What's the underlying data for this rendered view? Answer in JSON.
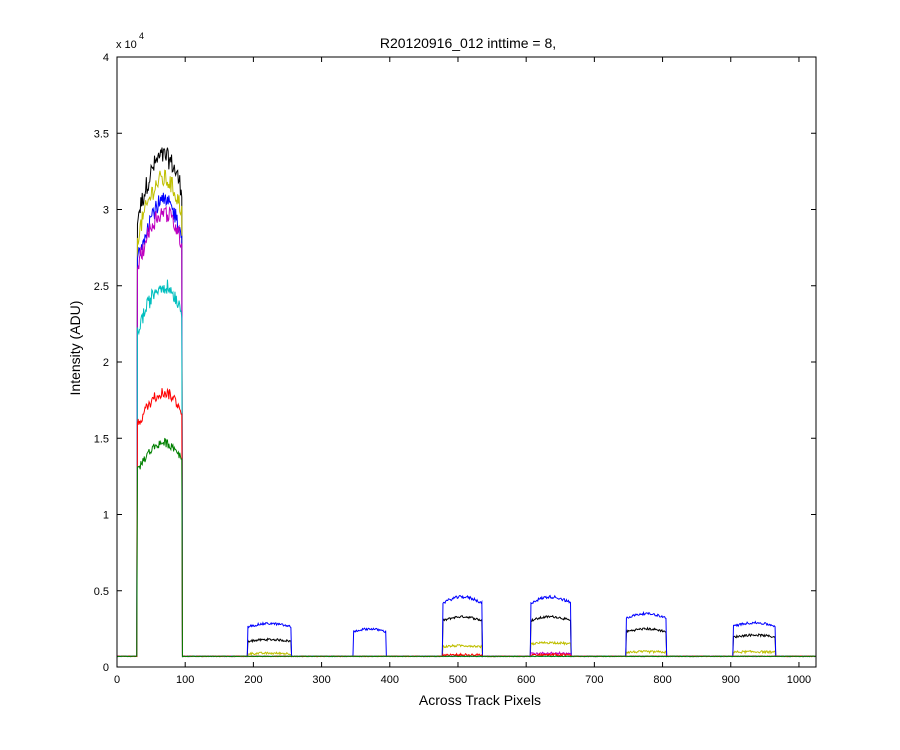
{
  "chart_data": {
    "type": "line",
    "title": "R20120916_012 inttime = 8,",
    "xlabel": "Across Track Pixels",
    "ylabel": "Intensity (ADU)",
    "y_exponent_label": "x 10",
    "y_exponent_power": "4",
    "xlim": [
      0,
      1025
    ],
    "ylim": [
      0,
      40000
    ],
    "xticks": [
      0,
      100,
      200,
      300,
      400,
      500,
      600,
      700,
      800,
      900,
      1000
    ],
    "yticks": [
      0,
      5000,
      10000,
      15000,
      20000,
      25000,
      30000,
      35000,
      40000
    ],
    "xtick_labels": [
      "0",
      "100",
      "200",
      "300",
      "400",
      "500",
      "600",
      "700",
      "800",
      "900",
      "1000"
    ],
    "ytick_labels": [
      "0",
      "0.5",
      "1",
      "1.5",
      "2",
      "2.5",
      "3",
      "3.5",
      "4"
    ],
    "grid": false,
    "legend": "none",
    "baseline": 700,
    "peaks": [
      {
        "x": [
          30,
          95
        ],
        "shape": "rising"
      },
      {
        "x": [
          192,
          255
        ],
        "shape": "flat"
      },
      {
        "x": [
          347,
          394
        ],
        "shape": "flat"
      },
      {
        "x": [
          478,
          535
        ],
        "shape": "flat"
      },
      {
        "x": [
          607,
          665
        ],
        "shape": "flat"
      },
      {
        "x": [
          747,
          805
        ],
        "shape": "flat"
      },
      {
        "x": [
          904,
          965
        ],
        "shape": "flat"
      }
    ],
    "series": [
      {
        "color": "#000000",
        "peak_levels": [
          33500,
          1800,
          0,
          3300,
          3300,
          2500,
          2100
        ]
      },
      {
        "color": "#bfbf00",
        "peak_levels": [
          32000,
          900,
          0,
          1400,
          1600,
          1000,
          1000
        ]
      },
      {
        "color": "#0000ff",
        "peak_levels": [
          30500,
          2850,
          2500,
          4600,
          4600,
          3500,
          2900
        ]
      },
      {
        "color": "#bf00bf",
        "peak_levels": [
          29800,
          0,
          0,
          0,
          900,
          0,
          0
        ]
      },
      {
        "color": "#00bfbf",
        "peak_levels": [
          25000,
          0,
          0,
          0,
          0,
          0,
          0
        ]
      },
      {
        "color": "#ff0000",
        "peak_levels": [
          18000,
          0,
          0,
          800,
          800,
          0,
          0
        ]
      },
      {
        "color": "#008000",
        "peak_levels": [
          14700,
          0,
          0,
          0,
          0,
          0,
          0
        ]
      }
    ]
  }
}
